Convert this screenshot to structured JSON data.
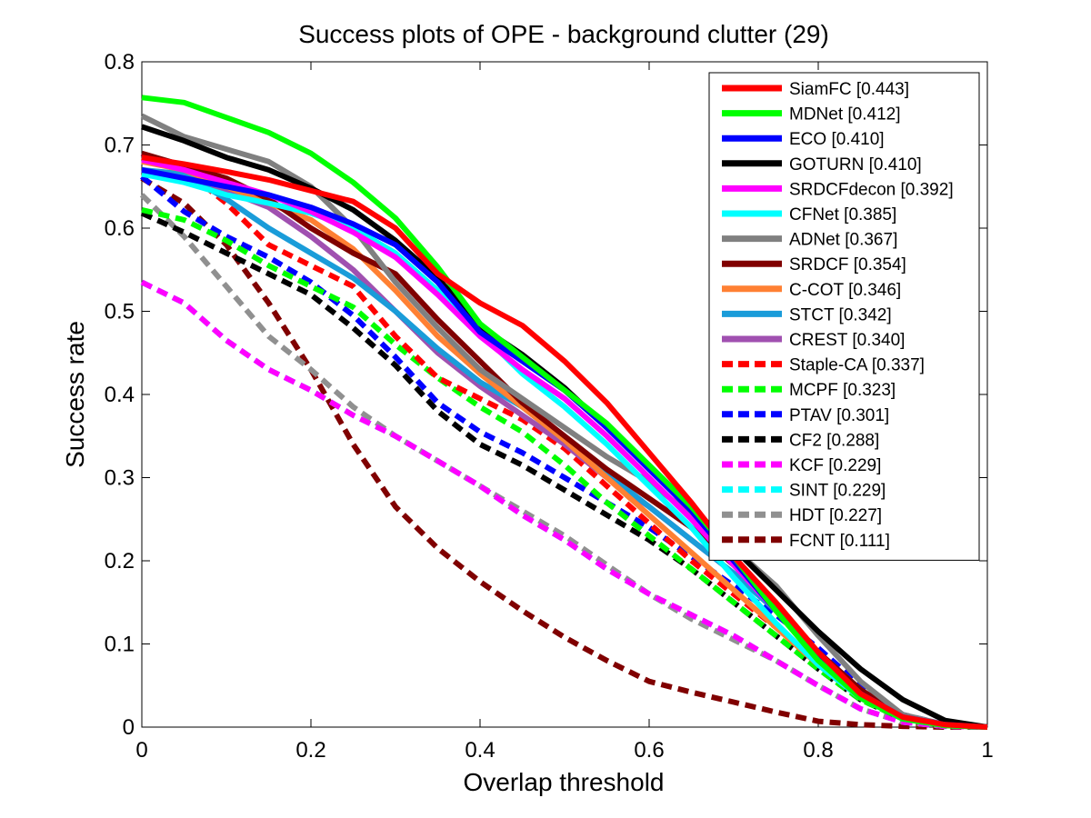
{
  "chart_data": {
    "type": "line",
    "title": "Success plots of OPE - background clutter (29)",
    "xlabel": "Overlap threshold",
    "ylabel": "Success rate",
    "xlim": [
      0,
      1
    ],
    "ylim": [
      0,
      0.8
    ],
    "xticks": [
      0,
      0.2,
      0.4,
      0.6,
      0.8,
      1
    ],
    "xtick_labels": [
      "0",
      "0.2",
      "0.4",
      "0.6",
      "0.8",
      "1"
    ],
    "yticks": [
      0,
      0.1,
      0.2,
      0.3,
      0.4,
      0.5,
      0.6,
      0.7,
      0.8
    ],
    "ytick_labels": [
      "0",
      "0.1",
      "0.2",
      "0.3",
      "0.4",
      "0.5",
      "0.6",
      "0.7",
      "0.8"
    ],
    "grid": false,
    "legend_position": "top-right",
    "x": [
      0,
      0.05,
      0.1,
      0.15,
      0.2,
      0.25,
      0.3,
      0.35,
      0.4,
      0.45,
      0.5,
      0.55,
      0.6,
      0.65,
      0.7,
      0.75,
      0.8,
      0.85,
      0.9,
      0.95,
      1.0
    ],
    "series": [
      {
        "name": "SiamFC [0.443]",
        "color": "#ff0000",
        "dashed": false,
        "values": [
          0.685,
          0.677,
          0.668,
          0.658,
          0.645,
          0.632,
          0.6,
          0.545,
          0.51,
          0.483,
          0.44,
          0.39,
          0.33,
          0.27,
          0.205,
          0.15,
          0.09,
          0.04,
          0.012,
          0.003,
          0.0
        ]
      },
      {
        "name": "MDNet [0.412]",
        "color": "#00ff00",
        "dashed": false,
        "values": [
          0.757,
          0.751,
          0.733,
          0.715,
          0.69,
          0.655,
          0.612,
          0.553,
          0.485,
          0.445,
          0.405,
          0.365,
          0.315,
          0.265,
          0.205,
          0.14,
          0.08,
          0.035,
          0.01,
          0.002,
          0.0
        ]
      },
      {
        "name": "ECO [0.410]",
        "color": "#0000ff",
        "dashed": false,
        "values": [
          0.67,
          0.66,
          0.65,
          0.64,
          0.625,
          0.605,
          0.58,
          0.535,
          0.475,
          0.44,
          0.405,
          0.36,
          0.31,
          0.26,
          0.2,
          0.14,
          0.085,
          0.04,
          0.012,
          0.003,
          0.0
        ]
      },
      {
        "name": "GOTURN [0.410]",
        "color": "#000000",
        "dashed": false,
        "values": [
          0.722,
          0.705,
          0.685,
          0.67,
          0.648,
          0.622,
          0.585,
          0.54,
          0.482,
          0.448,
          0.408,
          0.36,
          0.312,
          0.262,
          0.215,
          0.165,
          0.115,
          0.07,
          0.033,
          0.008,
          0.0
        ]
      },
      {
        "name": "SRDCFdecon [0.392]",
        "color": "#ff00ff",
        "dashed": false,
        "values": [
          0.682,
          0.67,
          0.655,
          0.64,
          0.62,
          0.595,
          0.565,
          0.52,
          0.47,
          0.43,
          0.395,
          0.35,
          0.3,
          0.25,
          0.195,
          0.14,
          0.085,
          0.04,
          0.012,
          0.003,
          0.0
        ]
      },
      {
        "name": "CFNet [0.385]",
        "color": "#00ffff",
        "dashed": false,
        "values": [
          0.665,
          0.655,
          0.64,
          0.63,
          0.618,
          0.6,
          0.57,
          0.525,
          0.475,
          0.425,
          0.385,
          0.34,
          0.29,
          0.24,
          0.18,
          0.125,
          0.075,
          0.035,
          0.01,
          0.002,
          0.0
        ]
      },
      {
        "name": "ADNet [0.367]",
        "color": "#808080",
        "dashed": false,
        "values": [
          0.735,
          0.71,
          0.695,
          0.68,
          0.65,
          0.6,
          0.535,
          0.48,
          0.43,
          0.395,
          0.36,
          0.325,
          0.295,
          0.255,
          0.215,
          0.17,
          0.11,
          0.055,
          0.015,
          0.003,
          0.0
        ]
      },
      {
        "name": "SRDCF [0.354]",
        "color": "#800000",
        "dashed": false,
        "values": [
          0.69,
          0.675,
          0.66,
          0.635,
          0.6,
          0.57,
          0.545,
          0.49,
          0.44,
          0.39,
          0.35,
          0.31,
          0.275,
          0.24,
          0.195,
          0.145,
          0.09,
          0.045,
          0.013,
          0.003,
          0.0
        ]
      },
      {
        "name": "C-COT [0.346]",
        "color": "#ff8033",
        "dashed": false,
        "values": [
          0.68,
          0.67,
          0.65,
          0.63,
          0.61,
          0.575,
          0.525,
          0.47,
          0.425,
          0.385,
          0.345,
          0.3,
          0.255,
          0.21,
          0.165,
          0.12,
          0.075,
          0.035,
          0.01,
          0.002,
          0.0
        ]
      },
      {
        "name": "STCT [0.342]",
        "color": "#1a9cd9",
        "dashed": false,
        "values": [
          0.67,
          0.665,
          0.635,
          0.6,
          0.57,
          0.54,
          0.5,
          0.455,
          0.415,
          0.385,
          0.345,
          0.305,
          0.265,
          0.225,
          0.185,
          0.14,
          0.09,
          0.045,
          0.013,
          0.003,
          0.0
        ]
      },
      {
        "name": "CREST [0.340]",
        "color": "#a050b0",
        "dashed": false,
        "values": [
          0.69,
          0.665,
          0.645,
          0.625,
          0.59,
          0.55,
          0.5,
          0.45,
          0.41,
          0.375,
          0.34,
          0.3,
          0.265,
          0.225,
          0.185,
          0.14,
          0.09,
          0.045,
          0.013,
          0.003,
          0.0
        ]
      },
      {
        "name": "Staple-CA [0.337]",
        "color": "#ff0000",
        "dashed": true,
        "values": [
          0.685,
          0.67,
          0.63,
          0.58,
          0.555,
          0.53,
          0.47,
          0.42,
          0.395,
          0.37,
          0.335,
          0.29,
          0.245,
          0.2,
          0.16,
          0.12,
          0.075,
          0.035,
          0.01,
          0.002,
          0.0
        ]
      },
      {
        "name": "MCPF [0.323]",
        "color": "#00ff00",
        "dashed": true,
        "values": [
          0.622,
          0.61,
          0.585,
          0.555,
          0.53,
          0.505,
          0.46,
          0.42,
          0.385,
          0.355,
          0.315,
          0.27,
          0.23,
          0.19,
          0.15,
          0.11,
          0.07,
          0.033,
          0.01,
          0.002,
          0.0
        ]
      },
      {
        "name": "PTAV [0.301]",
        "color": "#0000ff",
        "dashed": true,
        "values": [
          0.662,
          0.62,
          0.59,
          0.565,
          0.535,
          0.495,
          0.445,
          0.39,
          0.355,
          0.33,
          0.3,
          0.27,
          0.24,
          0.205,
          0.17,
          0.135,
          0.095,
          0.05,
          0.015,
          0.003,
          0.0
        ]
      },
      {
        "name": "CF2 [0.288]",
        "color": "#000000",
        "dashed": true,
        "values": [
          0.618,
          0.595,
          0.57,
          0.545,
          0.52,
          0.48,
          0.435,
          0.38,
          0.34,
          0.315,
          0.285,
          0.255,
          0.225,
          0.19,
          0.15,
          0.11,
          0.07,
          0.033,
          0.01,
          0.002,
          0.0
        ]
      },
      {
        "name": "KCF [0.229]",
        "color": "#ff00ff",
        "dashed": true,
        "values": [
          0.535,
          0.51,
          0.465,
          0.43,
          0.405,
          0.375,
          0.35,
          0.32,
          0.29,
          0.255,
          0.225,
          0.19,
          0.16,
          0.135,
          0.11,
          0.08,
          0.05,
          0.022,
          0.006,
          0.001,
          0.0
        ]
      },
      {
        "name": "SINT [0.229]",
        "color": "#00ffff",
        "dashed": true,
        "values": [
          0.535,
          0.51,
          0.465,
          0.43,
          0.405,
          0.375,
          0.35,
          0.32,
          0.29,
          0.255,
          0.225,
          0.19,
          0.16,
          0.135,
          0.11,
          0.08,
          0.05,
          0.022,
          0.006,
          0.001,
          0.0
        ]
      },
      {
        "name": "HDT [0.227]",
        "color": "#909090",
        "dashed": true,
        "values": [
          0.64,
          0.59,
          0.53,
          0.47,
          0.43,
          0.385,
          0.35,
          0.32,
          0.29,
          0.26,
          0.23,
          0.195,
          0.16,
          0.13,
          0.105,
          0.08,
          0.05,
          0.022,
          0.006,
          0.001,
          0.0
        ]
      },
      {
        "name": "FCNT [0.111]",
        "color": "#800000",
        "dashed": true,
        "values": [
          0.66,
          0.63,
          0.58,
          0.51,
          0.43,
          0.34,
          0.265,
          0.215,
          0.175,
          0.14,
          0.108,
          0.08,
          0.055,
          0.042,
          0.03,
          0.018,
          0.007,
          0.003,
          0.001,
          0.0,
          0.0
        ]
      }
    ]
  }
}
